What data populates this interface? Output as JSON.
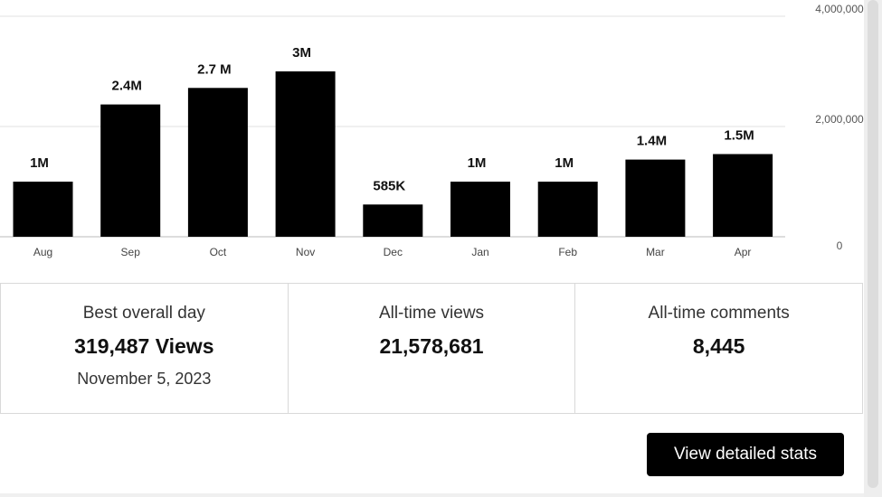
{
  "chart_data": {
    "type": "bar",
    "categories": [
      "Aug",
      "Sep",
      "Oct",
      "Nov",
      "Dec",
      "Jan",
      "Feb",
      "Mar",
      "Apr"
    ],
    "values": [
      1000000,
      2400000,
      2700000,
      3000000,
      585000,
      1000000,
      1000000,
      1400000,
      1500000
    ],
    "data_labels": [
      "1M",
      "2.4M",
      "2.7 M",
      "3M",
      "585K",
      "1M",
      "1M",
      "1.4M",
      "1.5M"
    ],
    "y_ticks": [
      0,
      2000000,
      4000000
    ],
    "y_tick_labels": [
      "0",
      "2,000,000",
      "4,000,000"
    ],
    "ylim": [
      0,
      4000000
    ],
    "y_axis_position": "right",
    "grid": true,
    "bar_color": "#000000"
  },
  "stats": [
    {
      "label": "Best overall day",
      "value": "319,487 Views",
      "sub": "November 5, 2023"
    },
    {
      "label": "All-time views",
      "value": "21,578,681",
      "sub": ""
    },
    {
      "label": "All-time comments",
      "value": "8,445",
      "sub": ""
    }
  ],
  "actions": {
    "detailed_stats_label": "View detailed stats"
  }
}
